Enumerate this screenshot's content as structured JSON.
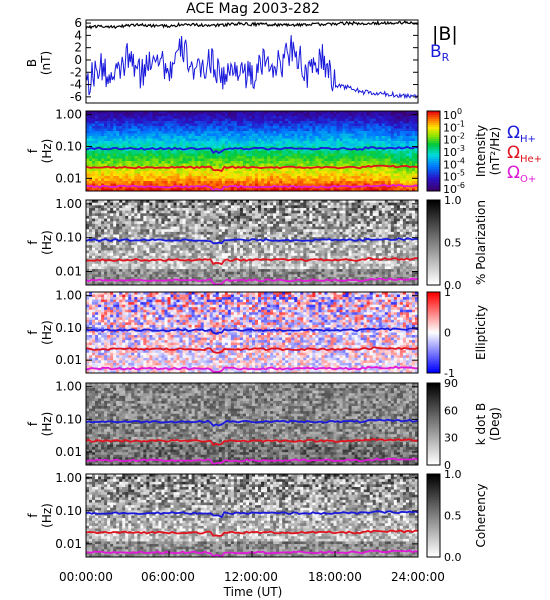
{
  "title": "ACE Mag 2003-282",
  "xaxis": {
    "label": "Time (UT)",
    "ticks": [
      "00:00:00",
      "06:00:00",
      "12:00:00",
      "18:00:00",
      "24:00:00"
    ],
    "range_hours": [
      0,
      24
    ]
  },
  "legend": {
    "total_field": "|B|",
    "radial": "B",
    "radial_sub": "R",
    "colors": {
      "total_field": "#000000",
      "radial": "#1a1adc"
    }
  },
  "gyro_labels": [
    {
      "symbol": "Ω",
      "sub": "H+",
      "color": "#1a1adc"
    },
    {
      "symbol": "Ω",
      "sub": "He+",
      "color": "#e0141e"
    },
    {
      "symbol": "Ω",
      "sub": "O+",
      "color": "#e01ad8"
    }
  ],
  "panels": [
    {
      "ylabel": "B",
      "ylabel2": "(nT)"
    },
    {
      "ylabel": "f",
      "ylabel2": "(Hz)",
      "cbar_label": "Intensity",
      "cbar_label2": "(nT²/Hz)"
    },
    {
      "ylabel": "f",
      "ylabel2": "(Hz)",
      "cbar_label": "% Polarization",
      "cbar_label2": ""
    },
    {
      "ylabel": "f",
      "ylabel2": "(Hz)",
      "cbar_label": "Ellipticity",
      "cbar_label2": ""
    },
    {
      "ylabel": "f",
      "ylabel2": "(Hz)",
      "cbar_label": "k dot B",
      "cbar_label2": "(Deg)"
    },
    {
      "ylabel": "f",
      "ylabel2": "(Hz)",
      "cbar_label": "Coherency",
      "cbar_label2": ""
    }
  ],
  "freq_ticks": [
    "1.00",
    "0.10",
    "0.01"
  ],
  "colorbars": {
    "intensity": {
      "ticks": [
        "10^0",
        "10^-1",
        "10^-2",
        "10^-3",
        "10^-4",
        "10^-5",
        "10^-6"
      ]
    },
    "polarization": {
      "ticks": [
        "1.0",
        "0.5",
        "0.0"
      ]
    },
    "ellipticity": {
      "ticks": [
        "1",
        "0",
        "-1"
      ]
    },
    "kdotb": {
      "ticks": [
        "90",
        "60",
        "30",
        "0"
      ]
    },
    "coherency": {
      "ticks": [
        "1.0",
        "0.5",
        "0.0"
      ]
    }
  },
  "chart_data": [
    {
      "type": "line",
      "title": "ACE Mag 2003-282",
      "xlabel": "Time (UT)",
      "ylabel": "B (nT)",
      "xlim": [
        0,
        24
      ],
      "ylim": [
        -7,
        6.5
      ],
      "yticks": [
        6,
        4,
        2,
        0,
        -2,
        -4,
        -6
      ],
      "x": [
        0,
        1,
        2,
        3,
        4,
        5,
        6,
        7,
        8,
        9,
        10,
        11,
        12,
        13,
        14,
        15,
        16,
        17,
        18,
        19,
        20,
        21,
        22,
        23,
        24
      ],
      "series": [
        {
          "name": "|B|",
          "color": "#000000",
          "values": [
            5.3,
            5.5,
            5.4,
            5.6,
            5.7,
            5.6,
            5.5,
            5.8,
            5.7,
            5.6,
            5.7,
            5.9,
            5.8,
            5.8,
            5.7,
            5.6,
            5.8,
            5.8,
            5.9,
            6.0,
            5.9,
            6.0,
            6.0,
            6.1,
            6.0
          ]
        },
        {
          "name": "B_R",
          "color": "#1a1adc",
          "values": [
            -4.0,
            -1.0,
            -3.5,
            0.5,
            -2.5,
            1.5,
            -2.0,
            2.0,
            -2.5,
            0.0,
            -3.0,
            -1.0,
            -3.0,
            0.0,
            -1.0,
            2.5,
            -3.0,
            0.5,
            -4.0,
            -4.5,
            -5.2,
            -5.5,
            -5.6,
            -5.8,
            -5.9
          ]
        }
      ]
    },
    {
      "type": "heatmap",
      "name": "Intensity",
      "xlabel": "Time (UT)",
      "ylabel": "f (Hz)",
      "yscale": "log",
      "ylim": [
        0.004,
        1.3
      ],
      "clim_log10": [
        -6.5,
        0
      ],
      "gyrofrequency_lines_hz": {
        "H+": 0.085,
        "He+": 0.022,
        "O+": 0.0055
      }
    },
    {
      "type": "heatmap",
      "name": "% Polarization",
      "yscale": "log",
      "ylim": [
        0.004,
        1.3
      ],
      "clim": [
        0,
        1.0
      ]
    },
    {
      "type": "heatmap",
      "name": "Ellipticity",
      "yscale": "log",
      "ylim": [
        0.004,
        1.3
      ],
      "clim": [
        -1,
        1
      ]
    },
    {
      "type": "heatmap",
      "name": "k dot B",
      "yscale": "log",
      "ylim": [
        0.004,
        1.3
      ],
      "clim": [
        0,
        90
      ]
    },
    {
      "type": "heatmap",
      "name": "Coherency",
      "yscale": "log",
      "ylim": [
        0.004,
        1.3
      ],
      "clim": [
        0,
        1.0
      ]
    }
  ]
}
